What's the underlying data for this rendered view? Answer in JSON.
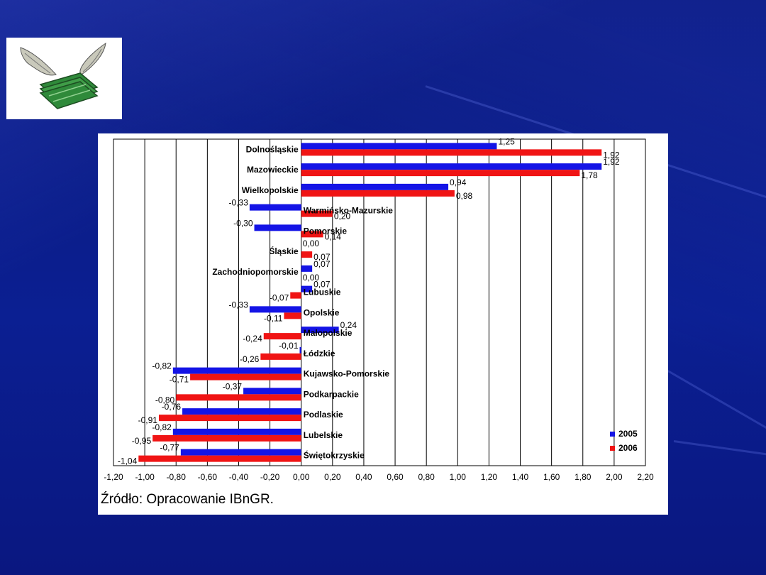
{
  "logo": {
    "icon": "flying-money-icon"
  },
  "source_text": "Źródło:  Opracowanie IBnGR.",
  "colors": {
    "s2005": "#1414e6",
    "s2006": "#f01414",
    "background": "#0b1f92"
  },
  "chart_data": {
    "type": "bar",
    "orientation": "horizontal",
    "title": "",
    "xlabel": "",
    "ylabel": "",
    "xlim": [
      -1.2,
      2.2
    ],
    "ticks": [
      "-1,20",
      "-1,00",
      "-0,80",
      "-0,60",
      "-0,40",
      "-0,20",
      "0,00",
      "0,20",
      "0,40",
      "0,60",
      "0,80",
      "1,00",
      "1,20",
      "1,40",
      "1,60",
      "1,80",
      "2,00",
      "2,20"
    ],
    "grid": true,
    "legend_position": "bottom-right",
    "categories": [
      "Dolnośląskie",
      "Mazowieckie",
      "Wielkopolskie",
      "Warmińsko-Mazurskie",
      "Pomorskie",
      "Śląskie",
      "Zachodniopomorskie",
      "Lubuskie",
      "Opolskie",
      "Małopolskie",
      "Łódzkie",
      "Kujawsko-Pomorskie",
      "Podkarpackie",
      "Podlaskie",
      "Lubelskie",
      "Świętokrzyskie"
    ],
    "series": [
      {
        "name": "2005",
        "values": [
          1.25,
          1.92,
          0.94,
          -0.33,
          -0.3,
          0.0,
          0.07,
          0.07,
          -0.33,
          0.24,
          -0.01,
          -0.82,
          -0.37,
          -0.76,
          -0.82,
          -0.77
        ],
        "labels": [
          "1,25",
          "1,92",
          "0,94",
          "-0,33",
          "-0,30",
          "0,00",
          "0,07",
          "0,07",
          "-0,33",
          "0,24",
          "-0,01",
          "-0,82",
          "-0,37",
          "-0,76",
          "-0,82",
          "-0,77"
        ]
      },
      {
        "name": "2006",
        "values": [
          1.92,
          1.78,
          0.98,
          0.2,
          0.14,
          0.07,
          0.0,
          -0.07,
          -0.11,
          -0.24,
          -0.26,
          -0.71,
          -0.8,
          -0.91,
          -0.95,
          -1.04
        ],
        "labels": [
          "1,92",
          "1,78",
          "0,98",
          "0,20",
          "0,14",
          "0,07",
          "0,00",
          "-0,07",
          "-0,11",
          "-0,24",
          "-0,26",
          "-0,71",
          "-0,80",
          "-0,91",
          "-0,95",
          "-1,04"
        ]
      }
    ]
  }
}
